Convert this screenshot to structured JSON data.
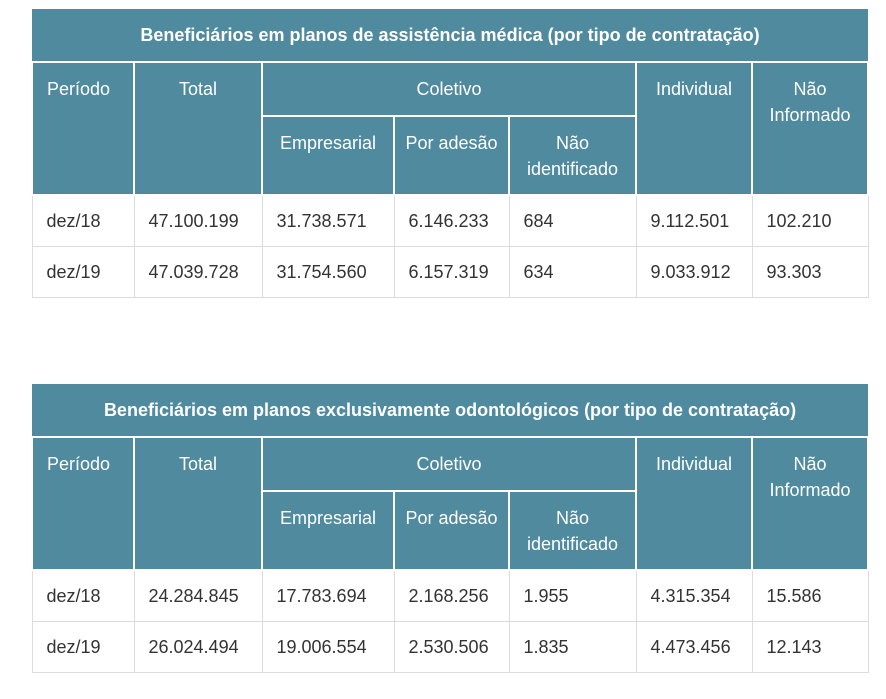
{
  "columns": {
    "periodo": "Período",
    "total": "Total",
    "coletivo": "Coletivo",
    "empresarial": "Empresarial",
    "por_adesao": "Por adesão",
    "nao_identificado": "Não identificado",
    "individual": "Individual",
    "nao_informado": "Não Informado"
  },
  "tables": [
    {
      "title": "Beneficiários em planos de assistência médica (por tipo de contratação)",
      "rows": [
        [
          "dez/18",
          "47.100.199",
          "31.738.571",
          "6.146.233",
          "684",
          "9.112.501",
          "102.210"
        ],
        [
          "dez/19",
          "47.039.728",
          "31.754.560",
          "6.157.319",
          "634",
          "9.033.912",
          "93.303"
        ]
      ]
    },
    {
      "title": "Beneficiários em planos exclusivamente odontológicos (por tipo de contratação)",
      "rows": [
        [
          "dez/18",
          "24.284.845",
          "17.783.694",
          "2.168.256",
          "1.955",
          "4.315.354",
          "15.586"
        ],
        [
          "dez/19",
          "26.024.494",
          "19.006.554",
          "2.530.506",
          "1.835",
          "4.473.456",
          "12.143"
        ]
      ]
    }
  ]
}
